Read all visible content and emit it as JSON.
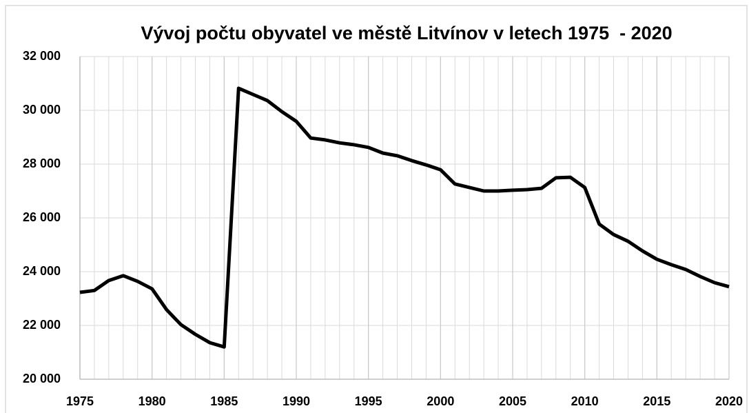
{
  "chart_data": {
    "type": "line",
    "title": "Vývoj počtu obyvatel ve městě Litvínov v letech 1975  - 2020",
    "x": [
      1975,
      1976,
      1977,
      1978,
      1979,
      1980,
      1981,
      1982,
      1983,
      1984,
      1985,
      1986,
      1987,
      1988,
      1989,
      1990,
      1991,
      1992,
      1993,
      1994,
      1995,
      1996,
      1997,
      1998,
      1999,
      2000,
      2001,
      2002,
      2003,
      2004,
      2005,
      2006,
      2007,
      2008,
      2009,
      2010,
      2011,
      2012,
      2013,
      2014,
      2015,
      2016,
      2017,
      2018,
      2019,
      2020
    ],
    "series": [
      {
        "color": "#000000",
        "values": [
          23230,
          23300,
          23670,
          23850,
          23640,
          23360,
          22590,
          22030,
          21670,
          21360,
          21200,
          30820,
          30590,
          30360,
          29950,
          29590,
          28970,
          28900,
          28790,
          28720,
          28620,
          28410,
          28310,
          28130,
          27970,
          27790,
          27260,
          27130,
          27000,
          27000,
          27030,
          27050,
          27100,
          27490,
          27510,
          27130,
          25770,
          25380,
          25130,
          24770,
          24460,
          24260,
          24080,
          23820,
          23590,
          23440
        ]
      }
    ],
    "xlim": [
      1975,
      2020
    ],
    "xticks": [
      1975,
      1980,
      1985,
      1990,
      1995,
      2000,
      2005,
      2010,
      2015,
      2020
    ],
    "ylim": [
      20000,
      32000
    ],
    "yticks": [
      {
        "value": 20000,
        "label": "20 000"
      },
      {
        "value": 22000,
        "label": "22 000"
      },
      {
        "value": 24000,
        "label": "24 000"
      },
      {
        "value": 26000,
        "label": "26 000"
      },
      {
        "value": 28000,
        "label": "28 000"
      },
      {
        "value": 30000,
        "label": "30 000"
      },
      {
        "value": 32000,
        "label": "32 000"
      }
    ],
    "grid": true
  }
}
